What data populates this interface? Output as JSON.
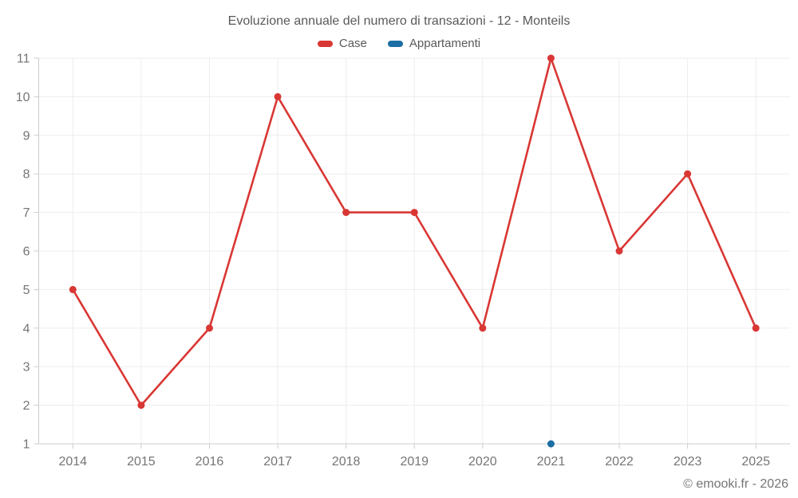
{
  "title": "Evoluzione annuale del numero di transazioni - 12 - Monteils",
  "watermark": "© emooki.fr - 2026",
  "chart_data": {
    "type": "line",
    "title": "Evoluzione annuale del numero di transazioni - 12 - Monteils",
    "categories": [
      "2014",
      "2015",
      "2016",
      "2017",
      "2018",
      "2019",
      "2020",
      "2021",
      "2022",
      "2023",
      "2025"
    ],
    "y_ticks": [
      1,
      2,
      3,
      4,
      5,
      6,
      7,
      8,
      9,
      10,
      11
    ],
    "ylim": [
      1,
      11
    ],
    "grid": true,
    "legend_position": "top",
    "xlabel": "",
    "ylabel": "",
    "series": [
      {
        "name": "Case",
        "color": "#d93734",
        "values": [
          5,
          2,
          4,
          10,
          7,
          7,
          4,
          11,
          6,
          8,
          4
        ]
      },
      {
        "name": "Appartamenti",
        "color": "#1c6ea4",
        "values": [
          null,
          null,
          null,
          null,
          null,
          null,
          null,
          1,
          null,
          null,
          null
        ]
      }
    ],
    "colors": {
      "grid": "#ededed",
      "axis": "#cccccc",
      "tick_label": "#757575",
      "title": "#595959"
    }
  }
}
